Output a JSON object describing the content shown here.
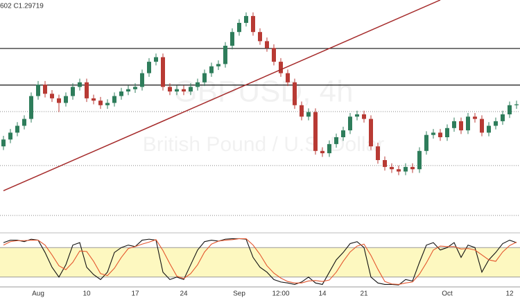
{
  "chart_data": [
    {
      "type": "candlestick",
      "header": "602 C1.29719",
      "watermark": "GBPUSD, 4h",
      "watermark_subtitle": "British Pound / U.S. Dollar",
      "categories": [
        null,
        null,
        null,
        null,
        null,
        "Aug",
        null,
        null,
        null,
        null,
        null,
        null,
        "10",
        null,
        null,
        null,
        null,
        null,
        null,
        "17",
        null,
        null,
        null,
        null,
        null,
        null,
        "24",
        null,
        null,
        null,
        null,
        null,
        null,
        null,
        "Sep",
        null,
        null,
        null,
        null,
        null,
        "12:00",
        null,
        null,
        null,
        null,
        null,
        "14",
        null,
        null,
        null,
        null,
        null,
        "21",
        null,
        null,
        null,
        null,
        null,
        null,
        null,
        null,
        null,
        null,
        null,
        "Oct",
        null,
        null,
        null,
        null,
        null,
        null,
        null,
        null,
        "12",
        null
      ],
      "open": [
        1.288,
        1.2895,
        1.291,
        1.2925,
        1.294,
        1.299,
        1.3015,
        1.2995,
        1.2985,
        1.2975,
        1.299,
        1.301,
        1.302,
        1.2985,
        1.298,
        1.297,
        1.2975,
        1.299,
        1.3,
        1.3005,
        1.301,
        1.304,
        1.3065,
        1.3075,
        1.301,
        1.3,
        1.3005,
        1.3,
        1.301,
        1.302,
        1.304,
        1.3055,
        1.306,
        1.31,
        1.313,
        1.315,
        1.3165,
        1.313,
        1.311,
        1.3095,
        1.3065,
        1.304,
        1.302,
        1.297,
        1.2945,
        1.2955,
        1.287,
        1.2865,
        1.2885,
        1.29,
        1.2915,
        1.2945,
        1.295,
        1.294,
        1.288,
        1.285,
        1.2835,
        1.283,
        1.2825,
        1.2835,
        1.283,
        1.287,
        1.2905,
        1.291,
        1.29,
        1.292,
        1.2935,
        1.2915,
        1.2945,
        1.294,
        1.291,
        1.2925,
        1.2935,
        1.295,
        1.297
      ],
      "high": [
        1.2903,
        1.2918,
        1.2933,
        1.2948,
        1.2998,
        1.3023,
        1.3023,
        1.3003,
        1.2993,
        1.2998,
        1.3018,
        1.3028,
        1.3028,
        1.2993,
        1.2988,
        1.2983,
        1.2998,
        1.3008,
        1.3013,
        1.3018,
        1.3048,
        1.3073,
        1.3083,
        1.3083,
        1.3018,
        1.3013,
        1.3013,
        1.3018,
        1.3028,
        1.3048,
        1.3063,
        1.3068,
        1.3108,
        1.3138,
        1.3158,
        1.3173,
        1.3173,
        1.3138,
        1.3118,
        1.3103,
        1.3073,
        1.3048,
        1.3028,
        1.2978,
        1.2963,
        1.2963,
        1.2878,
        1.2893,
        1.2908,
        1.2923,
        1.2953,
        1.2958,
        1.2958,
        1.2948,
        1.2888,
        1.2858,
        1.2843,
        1.2838,
        1.2843,
        1.2843,
        1.2878,
        1.2913,
        1.2918,
        1.2918,
        1.2928,
        1.2943,
        1.2943,
        1.2953,
        1.2953,
        1.2948,
        1.2933,
        1.2943,
        1.2958,
        1.2978,
        1.298
      ],
      "low": [
        1.2872,
        1.2887,
        1.2902,
        1.2917,
        1.2932,
        1.2982,
        1.2987,
        1.2977,
        1.2955,
        1.2967,
        1.2982,
        1.3002,
        1.2977,
        1.2972,
        1.2962,
        1.2962,
        1.2967,
        1.2982,
        1.2992,
        1.2997,
        1.3002,
        1.3032,
        1.3057,
        1.3002,
        1.2992,
        1.2992,
        1.2992,
        1.2992,
        1.3002,
        1.3012,
        1.3032,
        1.3047,
        1.3052,
        1.3092,
        1.3122,
        1.3142,
        1.3122,
        1.3102,
        1.3087,
        1.3057,
        1.3032,
        1.3012,
        1.2962,
        1.2937,
        1.2937,
        1.2862,
        1.2857,
        1.2857,
        1.2877,
        1.2892,
        1.2907,
        1.2937,
        1.2932,
        1.2872,
        1.2842,
        1.2827,
        1.2822,
        1.2817,
        1.2817,
        1.2822,
        1.2822,
        1.2862,
        1.2897,
        1.2892,
        1.2892,
        1.2912,
        1.2907,
        1.2907,
        1.2932,
        1.2902,
        1.2902,
        1.2917,
        1.2927,
        1.2942,
        1.2962
      ],
      "close": [
        1.2895,
        1.291,
        1.2925,
        1.294,
        1.299,
        1.3015,
        1.2995,
        1.2985,
        1.2975,
        1.299,
        1.301,
        1.302,
        1.2985,
        1.298,
        1.297,
        1.2975,
        1.299,
        1.3,
        1.3005,
        1.301,
        1.304,
        1.3065,
        1.3075,
        1.301,
        1.3,
        1.3005,
        1.3,
        1.301,
        1.302,
        1.304,
        1.3055,
        1.306,
        1.31,
        1.313,
        1.315,
        1.3165,
        1.313,
        1.311,
        1.3095,
        1.3065,
        1.304,
        1.302,
        1.297,
        1.2945,
        1.2955,
        1.287,
        1.2865,
        1.2885,
        1.29,
        1.2915,
        1.2945,
        1.295,
        1.294,
        1.288,
        1.285,
        1.2835,
        1.283,
        1.2825,
        1.2835,
        1.283,
        1.287,
        1.2905,
        1.291,
        1.29,
        1.292,
        1.2935,
        1.2915,
        1.2945,
        1.294,
        1.291,
        1.2925,
        1.2935,
        1.295,
        1.297,
        1.29719
      ],
      "up_color": "#2e7d5b",
      "down_color": "#b83a34",
      "ylim": [
        1.27,
        1.32
      ],
      "hlines": [
        {
          "value": 1.3094,
          "style": "solid"
        },
        {
          "value": 1.3014,
          "style": "solid"
        },
        {
          "value": 1.2956,
          "style": "dotted"
        },
        {
          "value": 1.2838,
          "style": "dotted"
        },
        {
          "value": 1.2729,
          "style": "dotted"
        }
      ],
      "trendline": {
        "x": [
          0,
          63
        ],
        "y": [
          1.2783,
          1.32
        ],
        "color": "#a52a2a"
      }
    },
    {
      "type": "line",
      "ylim": [
        0,
        100
      ],
      "levels": [
        80,
        20
      ],
      "band_color": "#fdf8c0",
      "series": [
        {
          "color": "#111111",
          "values": [
            90,
            95,
            95,
            92,
            97,
            95,
            70,
            40,
            20,
            45,
            85,
            90,
            40,
            25,
            15,
            30,
            70,
            80,
            85,
            82,
            95,
            97,
            95,
            30,
            15,
            20,
            15,
            45,
            75,
            92,
            95,
            93,
            97,
            98,
            98,
            97,
            60,
            40,
            30,
            15,
            10,
            8,
            5,
            10,
            20,
            8,
            5,
            30,
            55,
            70,
            88,
            92,
            80,
            20,
            8,
            5,
            5,
            4,
            15,
            12,
            50,
            85,
            90,
            75,
            80,
            90,
            60,
            85,
            80,
            30,
            55,
            70,
            88,
            95,
            90
          ]
        },
        {
          "color": "#e4572e",
          "values": [
            85,
            92,
            94,
            94,
            95,
            95,
            85,
            65,
            43,
            35,
            50,
            73,
            72,
            52,
            27,
            23,
            38,
            60,
            78,
            82,
            87,
            91,
            96,
            74,
            47,
            22,
            17,
            27,
            45,
            71,
            87,
            93,
            95,
            96,
            98,
            98,
            85,
            66,
            43,
            28,
            18,
            11,
            8,
            8,
            12,
            13,
            11,
            14,
            30,
            52,
            71,
            83,
            87,
            64,
            36,
            11,
            6,
            5,
            8,
            10,
            26,
            49,
            75,
            83,
            82,
            82,
            77,
            78,
            75,
            65,
            55,
            52,
            71,
            84,
            91
          ]
        }
      ]
    }
  ]
}
